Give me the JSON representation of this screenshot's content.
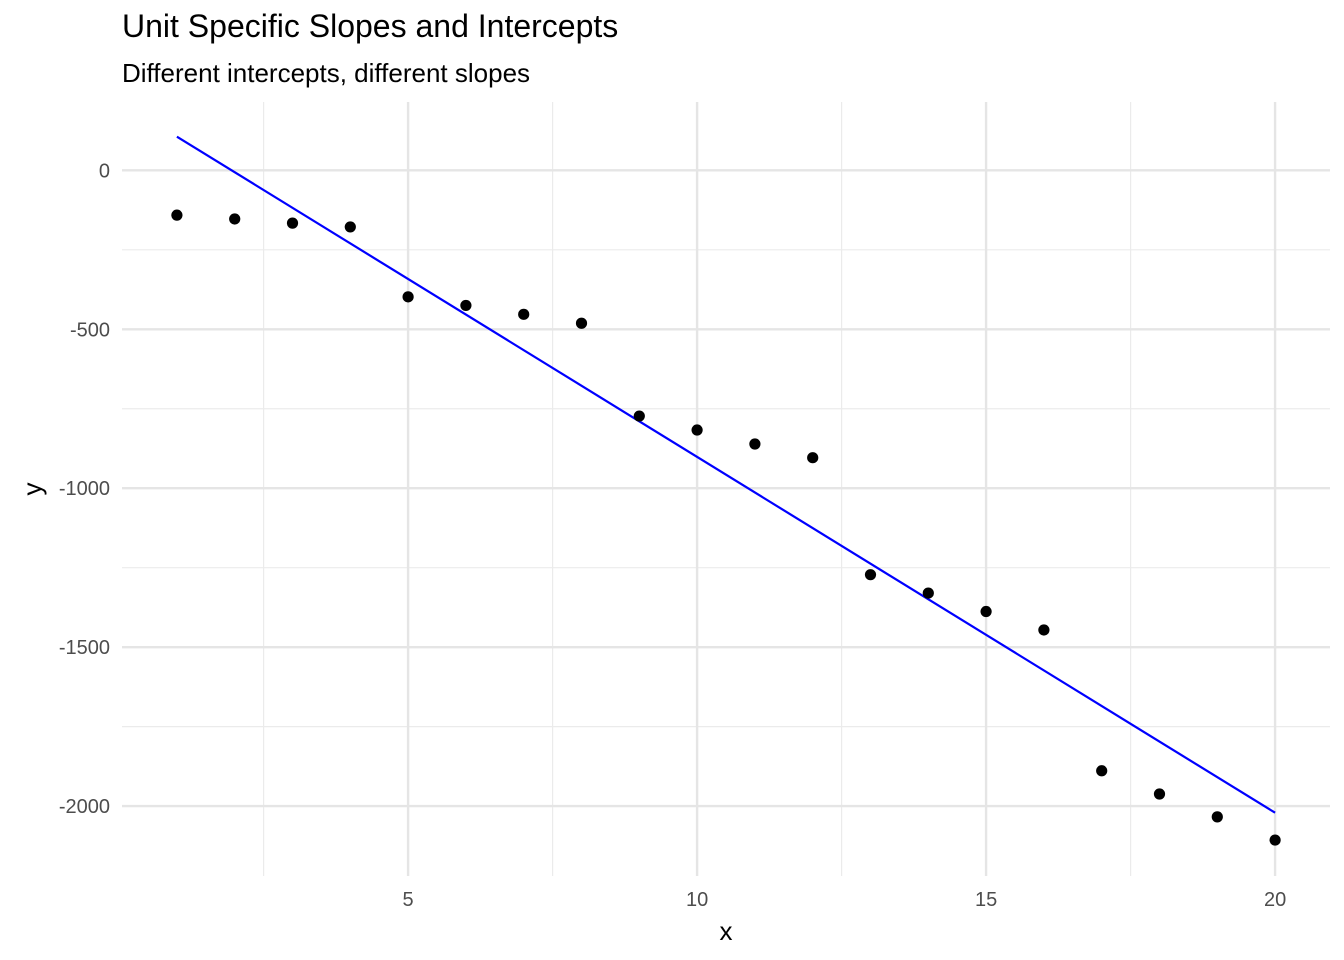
{
  "chart_data": {
    "type": "scatter",
    "title": "Unit Specific Slopes and Intercepts",
    "subtitle": "Different intercepts, different slopes",
    "xlabel": "x",
    "ylabel": "y",
    "xlim": [
      0.05,
      20.95
    ],
    "ylim": [
      -2220,
      215
    ],
    "x_ticks": [
      5,
      10,
      15,
      20
    ],
    "x_tick_labels": [
      "5",
      "10",
      "15",
      "20"
    ],
    "x_minor_ticks": [
      2.5,
      7.5,
      12.5,
      17.5
    ],
    "y_ticks": [
      0,
      -500,
      -1000,
      -1500,
      -2000
    ],
    "y_tick_labels": [
      "0",
      "-500",
      "-1000",
      "-1500",
      "-2000"
    ],
    "y_minor_ticks": [
      -250,
      -750,
      -1250,
      -1750
    ],
    "grid": true,
    "legend": "none",
    "series": [
      {
        "type": "points",
        "color": "#000000",
        "points": [
          {
            "x": 1,
            "y": -141
          },
          {
            "x": 2,
            "y": -153
          },
          {
            "x": 3,
            "y": -166
          },
          {
            "x": 4,
            "y": -178
          },
          {
            "x": 5,
            "y": -398
          },
          {
            "x": 6,
            "y": -425
          },
          {
            "x": 7,
            "y": -453
          },
          {
            "x": 8,
            "y": -481
          },
          {
            "x": 9,
            "y": -773
          },
          {
            "x": 10,
            "y": -817
          },
          {
            "x": 11,
            "y": -861
          },
          {
            "x": 12,
            "y": -904
          },
          {
            "x": 13,
            "y": -1272
          },
          {
            "x": 14,
            "y": -1330
          },
          {
            "x": 15,
            "y": -1388
          },
          {
            "x": 16,
            "y": -1446
          },
          {
            "x": 17,
            "y": -1889
          },
          {
            "x": 18,
            "y": -1962
          },
          {
            "x": 19,
            "y": -2034
          },
          {
            "x": 20,
            "y": -2107
          }
        ]
      },
      {
        "type": "line",
        "color": "#0000ff",
        "points": [
          {
            "x": 1,
            "y": 106
          },
          {
            "x": 20,
            "y": -2021
          }
        ]
      }
    ]
  }
}
